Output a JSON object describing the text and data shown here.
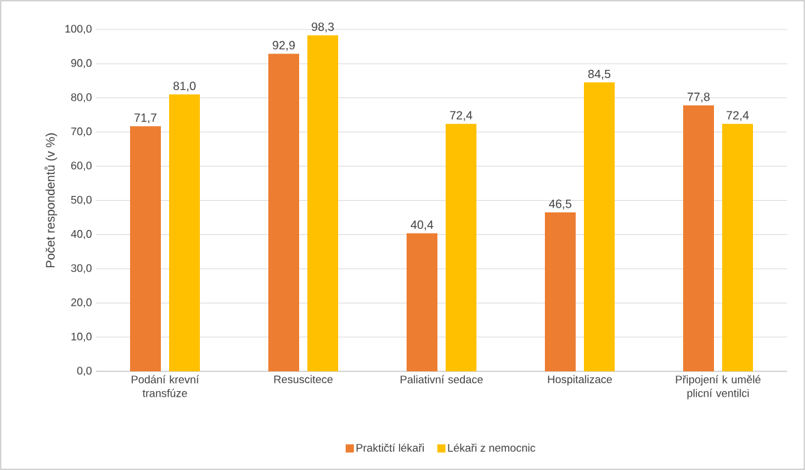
{
  "chart_data": {
    "type": "bar",
    "ylabel": "Počet respondentů (v %)",
    "categories": [
      "Podání krevní transfúze",
      "Resuscitece",
      "Paliativní sedace",
      "Hospitalizace",
      "Připojení k umělé plicní ventilci"
    ],
    "series": [
      {
        "name": "Praktičtí lékaři",
        "color": "#ed7d31",
        "values": [
          71.7,
          92.9,
          40.4,
          46.5,
          77.8
        ],
        "value_labels": [
          "71,7",
          "92,9",
          "40,4",
          "46,5",
          "77,8"
        ]
      },
      {
        "name": "Lékaři z nemocnic",
        "color": "#ffc000",
        "values": [
          81.0,
          98.3,
          72.4,
          84.5,
          72.4
        ],
        "value_labels": [
          "81,0",
          "98,3",
          "72,4",
          "84,5",
          "72,4"
        ]
      }
    ],
    "ylim": [
      0,
      100
    ],
    "yticks": [
      {
        "value": 0,
        "label": "0,0"
      },
      {
        "value": 10,
        "label": "10,0"
      },
      {
        "value": 20,
        "label": "20,0"
      },
      {
        "value": 30,
        "label": "30,0"
      },
      {
        "value": 40,
        "label": "40,0"
      },
      {
        "value": 50,
        "label": "50,0"
      },
      {
        "value": 60,
        "label": "60,0"
      },
      {
        "value": 70,
        "label": "70,0"
      },
      {
        "value": 80,
        "label": "80,0"
      },
      {
        "value": 90,
        "label": "90,0"
      },
      {
        "value": 100,
        "label": "100,0"
      }
    ],
    "grid": "y",
    "legend": "bottom"
  }
}
